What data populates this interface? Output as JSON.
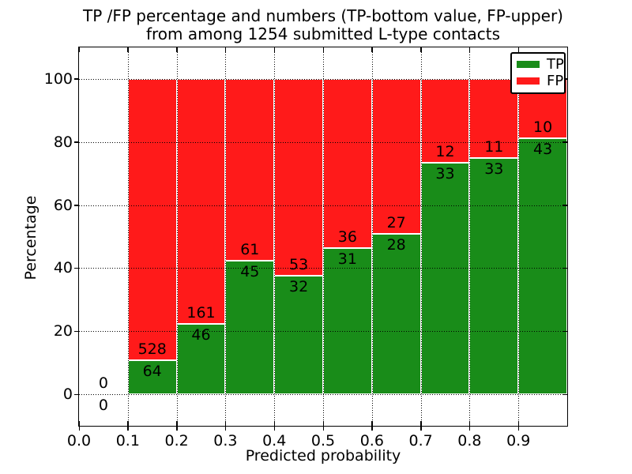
{
  "title": {
    "line1": "TP /FP percentage and numbers (TP-bottom value, FP-upper)",
    "line2": "from among 1254 submitted L-type contacts"
  },
  "axes": {
    "x_label": "Predicted probability",
    "y_label": "Percentage",
    "x_tick_labels": [
      "0.0",
      "0.1",
      "0.2",
      "0.3",
      "0.4",
      "0.5",
      "0.6",
      "0.7",
      "0.8",
      "0.9"
    ],
    "y_tick_values": [
      0,
      20,
      40,
      60,
      80,
      100
    ]
  },
  "colors": {
    "tp": "#198c19",
    "fp": "#ff1a1a",
    "grid": "#000000",
    "background": "#ffffff"
  },
  "chart_data": {
    "type": "bar",
    "stacked": true,
    "percent_normalized": true,
    "title": "TP /FP percentage and numbers (TP-bottom value, FP-upper) from among 1254 submitted L-type contacts",
    "xlabel": "Predicted probability",
    "ylabel": "Percentage",
    "xlim": [
      0.0,
      1.0
    ],
    "ylim": [
      -10,
      110
    ],
    "bin_width": 0.1,
    "total_submitted": 1254,
    "grid": "dotted",
    "legend_position": "upper right",
    "series": [
      {
        "name": "TP",
        "color": "#198c19"
      },
      {
        "name": "FP",
        "color": "#ff1a1a"
      }
    ],
    "bins": [
      {
        "x0": 0.0,
        "x1": 0.1,
        "tp": 0,
        "fp": 0
      },
      {
        "x0": 0.1,
        "x1": 0.2,
        "tp": 64,
        "fp": 528
      },
      {
        "x0": 0.2,
        "x1": 0.3,
        "tp": 46,
        "fp": 161
      },
      {
        "x0": 0.3,
        "x1": 0.4,
        "tp": 45,
        "fp": 61
      },
      {
        "x0": 0.4,
        "x1": 0.5,
        "tp": 32,
        "fp": 53
      },
      {
        "x0": 0.5,
        "x1": 0.6,
        "tp": 31,
        "fp": 36
      },
      {
        "x0": 0.6,
        "x1": 0.7,
        "tp": 28,
        "fp": 27
      },
      {
        "x0": 0.7,
        "x1": 0.8,
        "tp": 33,
        "fp": 12
      },
      {
        "x0": 0.8,
        "x1": 0.9,
        "tp": 33,
        "fp": 11
      },
      {
        "x0": 0.9,
        "x1": 1.0,
        "tp": 43,
        "fp": 10
      }
    ]
  }
}
